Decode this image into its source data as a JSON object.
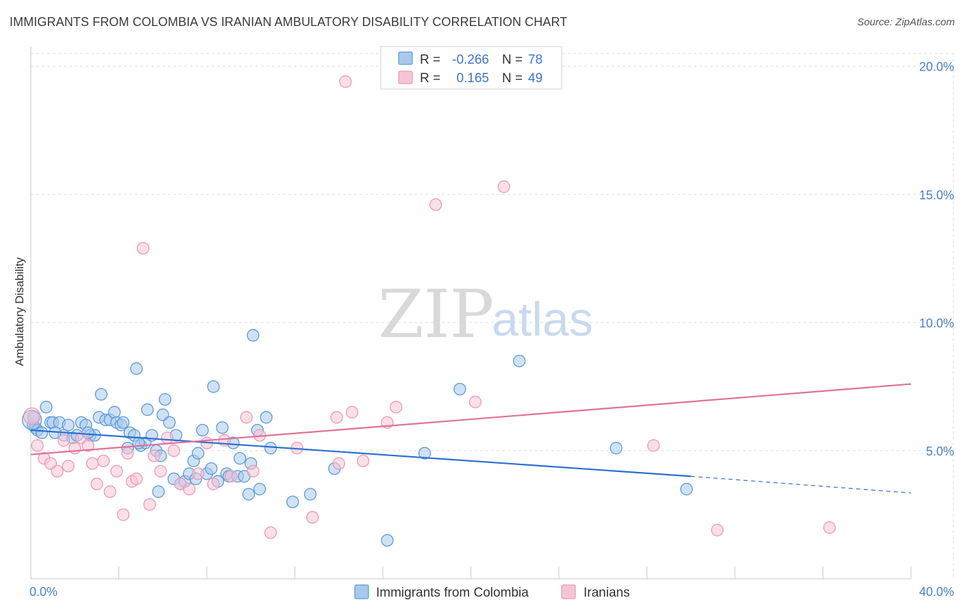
{
  "title": "IMMIGRANTS FROM COLOMBIA VS IRANIAN AMBULATORY DISABILITY CORRELATION CHART",
  "source": "Source: ZipAtlas.com",
  "watermark": {
    "zip": "ZIP",
    "atlas": "atlas"
  },
  "colors": {
    "blue": "#5b9bd5",
    "blue_fill": "#a9c8ec",
    "blue_line": "#2a6fd1",
    "pink": "#e89ab4",
    "pink_fill": "#f6c5d5",
    "pink_line": "#e0709a",
    "grid": "#dcdcdc",
    "tick_text": "#4a7fd0"
  },
  "legend": {
    "r_label": "R =",
    "n_label": "N =",
    "rows": [
      {
        "r": "-0.266",
        "n": "78"
      },
      {
        "r": "0.165",
        "n": "49"
      }
    ]
  },
  "chart_data": {
    "type": "scatter",
    "title": "IMMIGRANTS FROM COLOMBIA VS IRANIAN AMBULATORY DISABILITY CORRELATION CHART",
    "xlabel": "",
    "ylabel": "Ambulatory Disability",
    "xlim": [
      0,
      40
    ],
    "ylim": [
      0,
      20.5
    ],
    "x_ticks": [
      0,
      4,
      8,
      12,
      16,
      20,
      24,
      28,
      32,
      36,
      40
    ],
    "x_tick_labels": [
      {
        "value": 0,
        "label": "0.0%"
      },
      {
        "value": 40,
        "label": "40.0%"
      }
    ],
    "y_ticks": [
      {
        "value": 5,
        "label": "5.0%"
      },
      {
        "value": 10,
        "label": "10.0%"
      },
      {
        "value": 15,
        "label": "15.0%"
      },
      {
        "value": 20,
        "label": "20.0%"
      }
    ],
    "grid": true,
    "series": [
      {
        "name": "Immigrants from Colombia",
        "color_key": "blue",
        "trend": {
          "x0": 0,
          "y0": 5.8,
          "x1": 30,
          "y1": 4.0,
          "dash_x1": 40,
          "dash_y1": 3.35
        },
        "points": [
          [
            0.1,
            6.0
          ],
          [
            0.2,
            5.9
          ],
          [
            0.3,
            5.8
          ],
          [
            0.5,
            5.7
          ],
          [
            0.7,
            6.7
          ],
          [
            0.9,
            6.1
          ],
          [
            1.0,
            6.1
          ],
          [
            1.3,
            6.1
          ],
          [
            1.5,
            5.6
          ],
          [
            1.7,
            6.0
          ],
          [
            1.9,
            5.5
          ],
          [
            2.1,
            5.6
          ],
          [
            2.3,
            6.1
          ],
          [
            2.5,
            6.0
          ],
          [
            2.7,
            5.6
          ],
          [
            2.9,
            5.6
          ],
          [
            3.1,
            6.3
          ],
          [
            3.2,
            7.2
          ],
          [
            3.4,
            6.2
          ],
          [
            3.6,
            6.2
          ],
          [
            3.8,
            6.5
          ],
          [
            3.9,
            6.1
          ],
          [
            4.1,
            6.0
          ],
          [
            4.2,
            6.1
          ],
          [
            4.4,
            5.1
          ],
          [
            4.5,
            5.7
          ],
          [
            4.7,
            5.6
          ],
          [
            4.8,
            8.2
          ],
          [
            5.0,
            5.2
          ],
          [
            5.2,
            5.3
          ],
          [
            5.3,
            6.6
          ],
          [
            5.5,
            5.6
          ],
          [
            5.7,
            5.0
          ],
          [
            5.8,
            3.4
          ],
          [
            5.9,
            4.8
          ],
          [
            6.0,
            6.4
          ],
          [
            6.1,
            7.0
          ],
          [
            6.3,
            6.1
          ],
          [
            6.5,
            3.9
          ],
          [
            6.6,
            5.6
          ],
          [
            6.8,
            3.7
          ],
          [
            7.0,
            3.8
          ],
          [
            7.2,
            4.1
          ],
          [
            7.4,
            4.6
          ],
          [
            7.5,
            3.9
          ],
          [
            7.6,
            4.9
          ],
          [
            7.8,
            5.8
          ],
          [
            8.0,
            4.1
          ],
          [
            8.2,
            4.3
          ],
          [
            8.3,
            7.5
          ],
          [
            8.5,
            3.8
          ],
          [
            8.7,
            5.9
          ],
          [
            8.9,
            4.1
          ],
          [
            9.0,
            4.0
          ],
          [
            9.2,
            5.3
          ],
          [
            9.4,
            4.0
          ],
          [
            9.5,
            4.7
          ],
          [
            9.7,
            4.0
          ],
          [
            9.9,
            3.3
          ],
          [
            10.0,
            4.5
          ],
          [
            10.1,
            9.5
          ],
          [
            10.3,
            5.8
          ],
          [
            10.4,
            3.5
          ],
          [
            10.7,
            6.3
          ],
          [
            10.9,
            5.1
          ],
          [
            11.9,
            3.0
          ],
          [
            12.7,
            3.3
          ],
          [
            13.8,
            4.3
          ],
          [
            16.2,
            1.5
          ],
          [
            17.9,
            4.9
          ],
          [
            19.5,
            7.4
          ],
          [
            22.2,
            8.5
          ],
          [
            26.6,
            5.1
          ],
          [
            29.8,
            3.5
          ],
          [
            0.15,
            6.3
          ],
          [
            1.1,
            5.7
          ],
          [
            2.6,
            5.7
          ],
          [
            4.9,
            5.3
          ]
        ]
      },
      {
        "name": "Iranians",
        "color_key": "pink",
        "trend": {
          "x0": 0,
          "y0": 4.85,
          "x1": 40,
          "y1": 7.6
        },
        "points": [
          [
            0.1,
            6.3
          ],
          [
            0.3,
            5.2
          ],
          [
            0.6,
            4.7
          ],
          [
            0.9,
            4.5
          ],
          [
            1.2,
            4.2
          ],
          [
            1.5,
            5.4
          ],
          [
            1.7,
            4.4
          ],
          [
            2.0,
            5.1
          ],
          [
            2.3,
            5.5
          ],
          [
            2.6,
            5.2
          ],
          [
            2.8,
            4.5
          ],
          [
            3.0,
            3.7
          ],
          [
            3.3,
            4.6
          ],
          [
            3.6,
            3.4
          ],
          [
            3.9,
            4.2
          ],
          [
            4.2,
            2.5
          ],
          [
            4.4,
            4.9
          ],
          [
            4.6,
            3.8
          ],
          [
            4.8,
            3.9
          ],
          [
            5.1,
            12.9
          ],
          [
            5.4,
            2.9
          ],
          [
            5.6,
            4.8
          ],
          [
            5.9,
            4.2
          ],
          [
            6.2,
            5.5
          ],
          [
            6.5,
            5.0
          ],
          [
            6.8,
            3.7
          ],
          [
            7.2,
            3.5
          ],
          [
            7.6,
            4.1
          ],
          [
            8.0,
            5.3
          ],
          [
            8.3,
            3.7
          ],
          [
            8.8,
            5.4
          ],
          [
            9.1,
            4.0
          ],
          [
            9.8,
            6.3
          ],
          [
            10.1,
            4.2
          ],
          [
            10.4,
            5.6
          ],
          [
            10.9,
            1.8
          ],
          [
            12.1,
            5.1
          ],
          [
            12.8,
            2.4
          ],
          [
            13.9,
            6.3
          ],
          [
            14.3,
            19.4
          ],
          [
            14.6,
            6.5
          ],
          [
            15.1,
            4.6
          ],
          [
            16.2,
            6.1
          ],
          [
            16.6,
            6.7
          ],
          [
            18.4,
            14.6
          ],
          [
            20.2,
            6.9
          ],
          [
            21.5,
            15.3
          ],
          [
            28.3,
            5.2
          ],
          [
            31.2,
            1.9
          ]
        ]
      }
    ],
    "extra_points": [
      {
        "series": "Iranians",
        "x": 36.3,
        "y": 2.0
      },
      {
        "series": "Iranians",
        "x": 14.0,
        "y": 4.5
      }
    ]
  },
  "bottom_legend": [
    {
      "label": "Immigrants from Colombia"
    },
    {
      "label": "Iranians"
    }
  ]
}
